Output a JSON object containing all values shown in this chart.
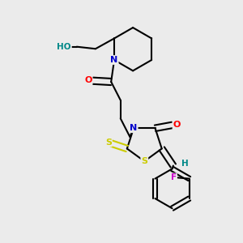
{
  "bg_color": "#ebebeb",
  "atom_colors": {
    "C": "#000000",
    "N": "#0000cc",
    "O": "#ff0000",
    "S": "#cccc00",
    "F": "#cc00cc",
    "H": "#008888",
    "HO": "#008888"
  }
}
